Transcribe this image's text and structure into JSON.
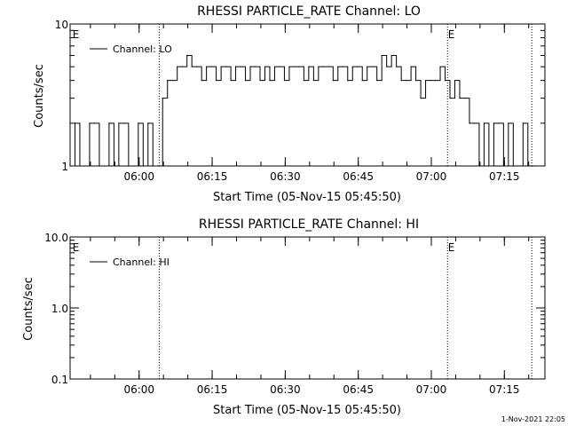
{
  "chart_data": [
    {
      "type": "line",
      "title": "RHESSI PARTICLE_RATE Channel: LO",
      "xlabel": "Start Time (05-Nov-15 05:45:50)",
      "ylabel": "Counts/sec",
      "yscale": "log",
      "ylim": [
        1,
        10
      ],
      "xlim_minutes_after_start": [
        0,
        97.5
      ],
      "ytick_labels": [
        {
          "value": 1,
          "label": "1"
        },
        {
          "value": 10,
          "label": "10"
        }
      ],
      "xtick_labels": [
        {
          "minutes": 14.17,
          "label": "06:00"
        },
        {
          "minutes": 29.17,
          "label": "06:15"
        },
        {
          "minutes": 44.17,
          "label": "06:30"
        },
        {
          "minutes": 59.17,
          "label": "06:45"
        },
        {
          "minutes": 74.17,
          "label": "07:00"
        },
        {
          "minutes": 89.17,
          "label": "07:15"
        }
      ],
      "event_lines_minutes": [
        18.3,
        77.5,
        94.8
      ],
      "event_markers": [
        {
          "minutes": 0.5,
          "label": "E"
        },
        {
          "minutes": 77.6,
          "label": "E"
        }
      ],
      "legend": "top-left",
      "series": [
        {
          "name": "Channel: LO",
          "x": [
            0,
            1,
            2,
            3,
            4,
            5,
            6,
            7,
            8,
            9,
            10,
            11,
            12,
            13,
            14,
            15,
            16,
            17,
            18,
            19,
            20,
            21,
            22,
            23,
            24,
            25,
            26,
            27,
            28,
            29,
            30,
            31,
            32,
            33,
            34,
            35,
            36,
            37,
            38,
            39,
            40,
            41,
            42,
            43,
            44,
            45,
            46,
            47,
            48,
            49,
            50,
            51,
            52,
            53,
            54,
            55,
            56,
            57,
            58,
            59,
            60,
            61,
            62,
            63,
            64,
            65,
            66,
            67,
            68,
            69,
            70,
            71,
            72,
            73,
            74,
            75,
            76,
            77,
            78,
            79,
            80,
            81,
            82,
            83,
            84,
            85,
            86,
            87,
            88,
            89,
            90,
            91,
            92,
            93,
            94,
            95
          ],
          "values": [
            1,
            2,
            1,
            1,
            2,
            2,
            1,
            1,
            2,
            1,
            2,
            2,
            1,
            1,
            2,
            1,
            2,
            1,
            1,
            3,
            4,
            4,
            5,
            5,
            6,
            5,
            5,
            4,
            5,
            5,
            4,
            5,
            5,
            4,
            5,
            5,
            4,
            5,
            5,
            4,
            5,
            4,
            5,
            5,
            4,
            5,
            5,
            5,
            4,
            5,
            4,
            5,
            5,
            5,
            4,
            5,
            5,
            4,
            5,
            5,
            4,
            5,
            5,
            4,
            6,
            5,
            6,
            5,
            4,
            4,
            5,
            4,
            3,
            4,
            4,
            4,
            5,
            4,
            3,
            4,
            3,
            3,
            2,
            2,
            1,
            2,
            1,
            2,
            2,
            1,
            2,
            1,
            1,
            2,
            1,
            1
          ]
        }
      ]
    },
    {
      "type": "line",
      "title": "RHESSI PARTICLE_RATE Channel: HI",
      "xlabel": "Start Time (05-Nov-15 05:45:50)",
      "ylabel": "Counts/sec",
      "yscale": "log",
      "ylim": [
        0.1,
        10
      ],
      "xlim_minutes_after_start": [
        0,
        97.5
      ],
      "ytick_labels": [
        {
          "value": 0.1,
          "label": "0.1"
        },
        {
          "value": 1,
          "label": "1.0"
        },
        {
          "value": 10,
          "label": "10.0"
        }
      ],
      "xtick_labels": [
        {
          "minutes": 14.17,
          "label": "06:00"
        },
        {
          "minutes": 29.17,
          "label": "06:15"
        },
        {
          "minutes": 44.17,
          "label": "06:30"
        },
        {
          "minutes": 59.17,
          "label": "06:45"
        },
        {
          "minutes": 74.17,
          "label": "07:00"
        },
        {
          "minutes": 89.17,
          "label": "07:15"
        }
      ],
      "event_lines_minutes": [
        18.3,
        77.5,
        94.8
      ],
      "event_markers": [
        {
          "minutes": 0.5,
          "label": "E"
        },
        {
          "minutes": 77.6,
          "label": "E"
        }
      ],
      "legend": "top-left",
      "series": [
        {
          "name": "Channel: HI",
          "x": [],
          "values": []
        }
      ]
    }
  ],
  "footer": {
    "date_stamp": "1-Nov-2021 22:05"
  }
}
